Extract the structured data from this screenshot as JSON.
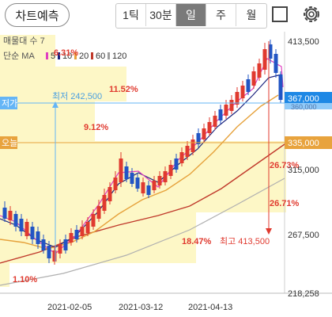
{
  "toolbar": {
    "predict_label": "차트예측",
    "timeframes": [
      {
        "label": "1틱",
        "active": false
      },
      {
        "label": "30분",
        "active": false
      },
      {
        "label": "일",
        "active": true
      },
      {
        "label": "주",
        "active": false
      },
      {
        "label": "월",
        "active": false
      }
    ]
  },
  "legend": {
    "volume_profile": "매물대 수 7",
    "ma_title": "단순 MA",
    "ma_periods": [
      {
        "label": "5",
        "color": "#e040c0"
      },
      {
        "label": "10",
        "color": "#1a237e"
      },
      {
        "label": "20",
        "color": "#e6a23c"
      },
      {
        "label": "60",
        "color": "#c0392b"
      },
      {
        "label": "120",
        "color": "#9e9e9e"
      }
    ]
  },
  "price_axis": {
    "ticks": [
      "413,500",
      "315,000",
      "267,500",
      "218,258"
    ],
    "current_price": "367,000",
    "hidden_price": "360,000",
    "today_price": "335,000"
  },
  "date_axis": [
    "2021-02-05",
    "2021-03-12",
    "2021-04-13"
  ],
  "markers": {
    "low_label": "저가",
    "today_label": "오늘",
    "min_annotation": "최저 242,500",
    "max_annotation": "최고 413,500"
  },
  "volume_profile_pcts": [
    "6.31%",
    "11.52%",
    "9.12%",
    "26.73%",
    "26.71%",
    "18.47%",
    "1.10%"
  ],
  "colors": {
    "up": "#e03a2f",
    "down": "#2255c4",
    "profile": "#fdf7c6",
    "accent_blue": "#64b5f6",
    "accent_orange": "#e8a33d"
  }
}
